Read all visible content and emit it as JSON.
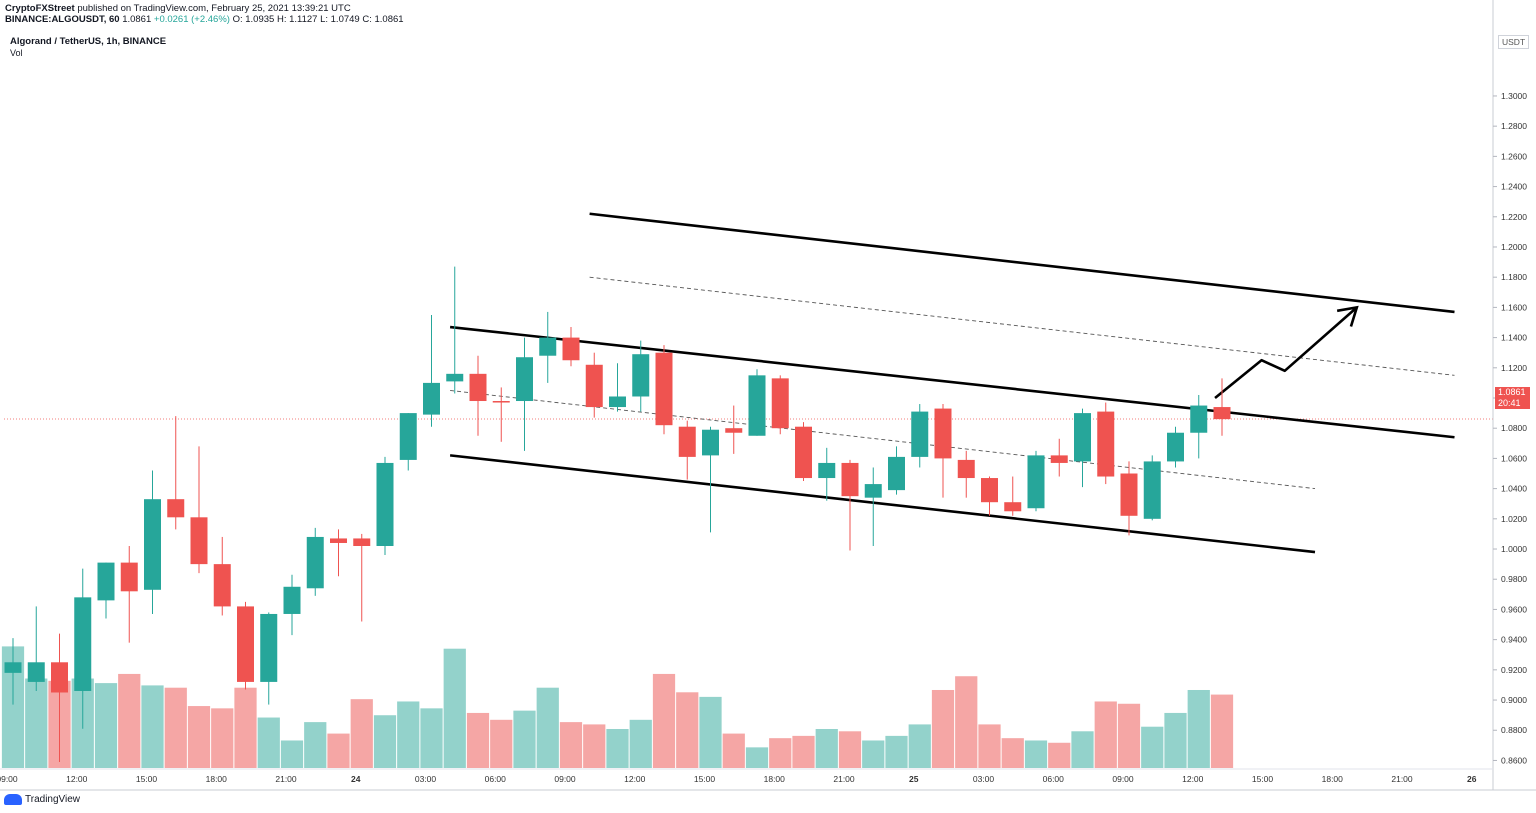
{
  "header": {
    "publisher": "CryptoFXStreet",
    "published_text": "published on TradingView.com, February 25, 2021 13:39:21 UTC",
    "symbol_line_prefix": "BINANCE:ALGOUSDT, 60",
    "last": "1.0861",
    "change": "+0.0261 (+2.46%)",
    "ohlc": "O: 1.0935  H: 1.1127  L: 1.0749  C: 1.0861"
  },
  "chart_title": "Algorand / TetherUS, 1h, BINANCE",
  "vol_label": "Vol",
  "currency": "USDT",
  "price_tag": {
    "price": "1.0861",
    "countdown": "20:41"
  },
  "branding": "TradingView",
  "colors": {
    "up": "#26a69a",
    "down": "#ef5350",
    "vol_up": "#93d2cb",
    "vol_down": "#f5a6a5",
    "line": "#000000"
  },
  "chart_data": {
    "type": "candlestick",
    "ylim": [
      0.855,
      1.345
    ],
    "y_ticks": [
      "1.3000",
      "1.2800",
      "1.2600",
      "1.2400",
      "1.2200",
      "1.2000",
      "1.1800",
      "1.1600",
      "1.1400",
      "1.1200",
      "1.1000",
      "1.0800",
      "1.0600",
      "1.0400",
      "1.0200",
      "1.0000",
      "0.9800",
      "0.9600",
      "0.9400",
      "0.9200",
      "0.9000",
      "0.8800",
      "0.8600"
    ],
    "x_ticks": [
      "09:00",
      "12:00",
      "15:00",
      "18:00",
      "21:00",
      "24",
      "03:00",
      "06:00",
      "09:00",
      "12:00",
      "15:00",
      "18:00",
      "21:00",
      "25",
      "03:00",
      "06:00",
      "09:00",
      "12:00",
      "15:00",
      "18:00",
      "21:00",
      "26"
    ],
    "candles": [
      {
        "o": 0.918,
        "h": 0.941,
        "l": 0.897,
        "c": 0.925,
        "v": 0.53
      },
      {
        "o": 0.912,
        "h": 0.962,
        "l": 0.906,
        "c": 0.925,
        "v": 0.39
      },
      {
        "o": 0.925,
        "h": 0.944,
        "l": 0.859,
        "c": 0.905,
        "v": 0.38
      },
      {
        "o": 0.906,
        "h": 0.987,
        "l": 0.881,
        "c": 0.968,
        "v": 0.39
      },
      {
        "o": 0.966,
        "h": 0.991,
        "l": 0.954,
        "c": 0.991,
        "v": 0.37
      },
      {
        "o": 0.991,
        "h": 1.002,
        "l": 0.938,
        "c": 0.972,
        "v": 0.41
      },
      {
        "o": 0.973,
        "h": 1.052,
        "l": 0.957,
        "c": 1.033,
        "v": 0.36
      },
      {
        "o": 1.033,
        "h": 1.088,
        "l": 1.013,
        "c": 1.021,
        "v": 0.35
      },
      {
        "o": 1.021,
        "h": 1.068,
        "l": 0.984,
        "c": 0.99,
        "v": 0.27
      },
      {
        "o": 0.99,
        "h": 1.008,
        "l": 0.956,
        "c": 0.962,
        "v": 0.26
      },
      {
        "o": 0.962,
        "h": 0.965,
        "l": 0.907,
        "c": 0.912,
        "v": 0.35
      },
      {
        "o": 0.912,
        "h": 0.958,
        "l": 0.897,
        "c": 0.957,
        "v": 0.22
      },
      {
        "o": 0.957,
        "h": 0.983,
        "l": 0.943,
        "c": 0.975,
        "v": 0.12
      },
      {
        "o": 0.974,
        "h": 1.014,
        "l": 0.969,
        "c": 1.008,
        "v": 0.2
      },
      {
        "o": 1.007,
        "h": 1.013,
        "l": 0.982,
        "c": 1.004,
        "v": 0.15
      },
      {
        "o": 1.007,
        "h": 1.01,
        "l": 0.952,
        "c": 1.002,
        "v": 0.3
      },
      {
        "o": 1.002,
        "h": 1.061,
        "l": 0.996,
        "c": 1.057,
        "v": 0.23
      },
      {
        "o": 1.059,
        "h": 1.09,
        "l": 1.052,
        "c": 1.09,
        "v": 0.29
      },
      {
        "o": 1.089,
        "h": 1.155,
        "l": 1.081,
        "c": 1.11,
        "v": 0.26
      },
      {
        "o": 1.111,
        "h": 1.187,
        "l": 1.103,
        "c": 1.116,
        "v": 0.52
      },
      {
        "o": 1.116,
        "h": 1.128,
        "l": 1.075,
        "c": 1.098,
        "v": 0.24
      },
      {
        "o": 1.098,
        "h": 1.107,
        "l": 1.071,
        "c": 1.097,
        "v": 0.21
      },
      {
        "o": 1.098,
        "h": 1.14,
        "l": 1.065,
        "c": 1.127,
        "v": 0.25
      },
      {
        "o": 1.128,
        "h": 1.157,
        "l": 1.11,
        "c": 1.14,
        "v": 0.35
      },
      {
        "o": 1.14,
        "h": 1.147,
        "l": 1.121,
        "c": 1.125,
        "v": 0.2
      },
      {
        "o": 1.122,
        "h": 1.13,
        "l": 1.087,
        "c": 1.094,
        "v": 0.19
      },
      {
        "o": 1.094,
        "h": 1.123,
        "l": 1.091,
        "c": 1.101,
        "v": 0.17
      },
      {
        "o": 1.101,
        "h": 1.138,
        "l": 1.091,
        "c": 1.129,
        "v": 0.21
      },
      {
        "o": 1.13,
        "h": 1.135,
        "l": 1.076,
        "c": 1.082,
        "v": 0.41
      },
      {
        "o": 1.081,
        "h": 1.085,
        "l": 1.046,
        "c": 1.061,
        "v": 0.33
      },
      {
        "o": 1.062,
        "h": 1.081,
        "l": 1.011,
        "c": 1.079,
        "v": 0.31
      },
      {
        "o": 1.08,
        "h": 1.095,
        "l": 1.063,
        "c": 1.077,
        "v": 0.15
      },
      {
        "o": 1.075,
        "h": 1.119,
        "l": 1.075,
        "c": 1.115,
        "v": 0.09
      },
      {
        "o": 1.113,
        "h": 1.115,
        "l": 1.076,
        "c": 1.08,
        "v": 0.13
      },
      {
        "o": 1.081,
        "h": 1.084,
        "l": 1.045,
        "c": 1.047,
        "v": 0.14
      },
      {
        "o": 1.047,
        "h": 1.067,
        "l": 1.032,
        "c": 1.057,
        "v": 0.17
      },
      {
        "o": 1.057,
        "h": 1.059,
        "l": 0.999,
        "c": 1.035,
        "v": 0.16
      },
      {
        "o": 1.034,
        "h": 1.054,
        "l": 1.002,
        "c": 1.043,
        "v": 0.12
      },
      {
        "o": 1.039,
        "h": 1.068,
        "l": 1.036,
        "c": 1.061,
        "v": 0.14
      },
      {
        "o": 1.061,
        "h": 1.096,
        "l": 1.054,
        "c": 1.091,
        "v": 0.19
      },
      {
        "o": 1.093,
        "h": 1.096,
        "l": 1.034,
        "c": 1.06,
        "v": 0.34
      },
      {
        "o": 1.059,
        "h": 1.065,
        "l": 1.034,
        "c": 1.047,
        "v": 0.4
      },
      {
        "o": 1.047,
        "h": 1.048,
        "l": 1.022,
        "c": 1.031,
        "v": 0.19
      },
      {
        "o": 1.031,
        "h": 1.048,
        "l": 1.022,
        "c": 1.025,
        "v": 0.13
      },
      {
        "o": 1.027,
        "h": 1.065,
        "l": 1.025,
        "c": 1.062,
        "v": 0.12
      },
      {
        "o": 1.062,
        "h": 1.073,
        "l": 1.048,
        "c": 1.057,
        "v": 0.11
      },
      {
        "o": 1.058,
        "h": 1.093,
        "l": 1.041,
        "c": 1.09,
        "v": 0.16
      },
      {
        "o": 1.091,
        "h": 1.097,
        "l": 1.043,
        "c": 1.048,
        "v": 0.29
      },
      {
        "o": 1.05,
        "h": 1.058,
        "l": 1.009,
        "c": 1.022,
        "v": 0.28
      },
      {
        "o": 1.02,
        "h": 1.062,
        "l": 1.019,
        "c": 1.058,
        "v": 0.18
      },
      {
        "o": 1.058,
        "h": 1.081,
        "l": 1.054,
        "c": 1.077,
        "v": 0.24
      },
      {
        "o": 1.077,
        "h": 1.102,
        "l": 1.06,
        "c": 1.095,
        "v": 0.34
      },
      {
        "o": 1.094,
        "h": 1.113,
        "l": 1.075,
        "c": 1.086,
        "v": 0.32
      }
    ],
    "trendlines": [
      {
        "style": "solid",
        "from": [
          18.8,
          1.147
        ],
        "to": [
          62,
          1.074
        ]
      },
      {
        "style": "solid",
        "from": [
          18.8,
          1.062
        ],
        "to": [
          56,
          0.998
        ]
      },
      {
        "style": "solid",
        "from": [
          24.8,
          1.222
        ],
        "to": [
          62,
          1.157
        ]
      },
      {
        "style": "dashed",
        "from": [
          18.8,
          1.105
        ],
        "to": [
          56,
          1.04
        ]
      },
      {
        "style": "dashed",
        "from": [
          24.8,
          1.18
        ],
        "to": [
          62,
          1.115
        ]
      }
    ],
    "arrow": [
      [
        51.7,
        1.1
      ],
      [
        53.7,
        1.125
      ],
      [
        54.7,
        1.118
      ],
      [
        57.8,
        1.16
      ]
    ],
    "last_price": 1.0861
  }
}
